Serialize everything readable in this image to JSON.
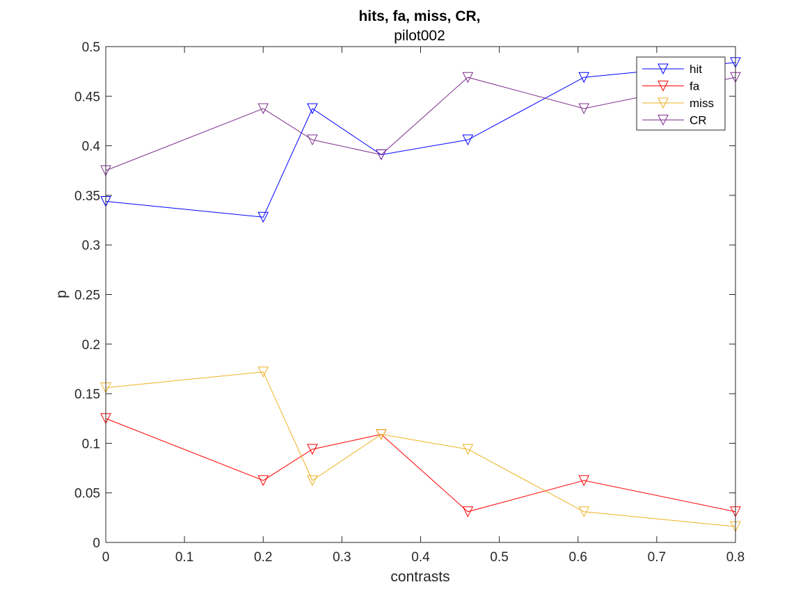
{
  "chart_data": {
    "type": "line",
    "title": "hits, fa, miss, CR,",
    "subtitle": "pilot002",
    "xlabel": "contrasts",
    "ylabel": "p",
    "xlim": [
      0,
      0.8
    ],
    "ylim": [
      0,
      0.5
    ],
    "xticks": [
      0,
      0.1,
      0.2,
      0.3,
      0.4,
      0.5,
      0.6,
      0.7,
      0.8
    ],
    "xtick_labels": [
      "0",
      "0.1",
      "0.2",
      "0.3",
      "0.4",
      "0.5",
      "0.6",
      "0.7",
      "0.8"
    ],
    "yticks": [
      0,
      0.05,
      0.1,
      0.15,
      0.2,
      0.25,
      0.3,
      0.35,
      0.4,
      0.45,
      0.5
    ],
    "ytick_labels": [
      "0",
      "0.05",
      "0.1",
      "0.15",
      "0.2",
      "0.25",
      "0.3",
      "0.35",
      "0.4",
      "0.45",
      "0.5"
    ],
    "grid": false,
    "legend_position": "top-right",
    "marker": "down-triangle",
    "x": [
      0,
      0.2,
      0.2625,
      0.35,
      0.46,
      0.6075,
      0.8
    ],
    "series": [
      {
        "name": "hit",
        "color": "#0000ff",
        "values": [
          0.344,
          0.328,
          0.4375,
          0.391,
          0.406,
          0.469,
          0.484
        ]
      },
      {
        "name": "fa",
        "color": "#ff0000",
        "values": [
          0.125,
          0.0625,
          0.094,
          0.109,
          0.031,
          0.0625,
          0.031
        ]
      },
      {
        "name": "miss",
        "color": "#edb120",
        "values": [
          0.156,
          0.172,
          0.0625,
          0.109,
          0.094,
          0.031,
          0.016
        ]
      },
      {
        "name": "CR",
        "color": "#7e2f8e",
        "values": [
          0.375,
          0.4375,
          0.406,
          0.391,
          0.469,
          0.4375,
          0.469
        ]
      }
    ]
  }
}
